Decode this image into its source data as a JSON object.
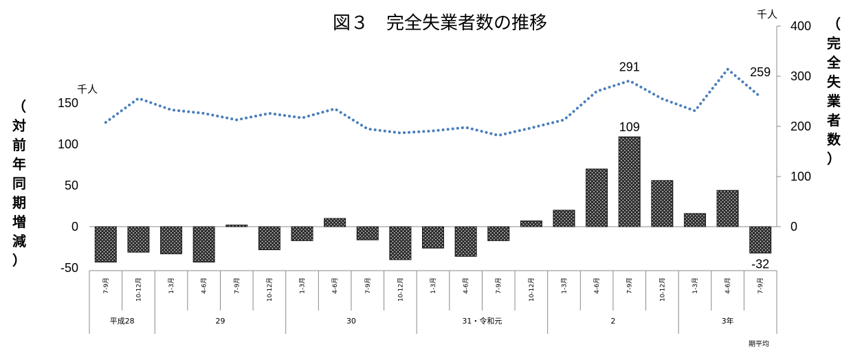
{
  "chart_data": {
    "type": "bar",
    "title": "図３　完全失業者数の推移",
    "left_axis": {
      "unit": "千人",
      "label_chars": [
        "（",
        "対",
        "前",
        "年",
        "同",
        "期",
        "増",
        "減",
        "）"
      ],
      "ylim": [
        -50,
        150
      ],
      "ticks": [
        -50,
        0,
        50,
        100,
        150
      ]
    },
    "right_axis": {
      "unit": "千人",
      "label_chars": [
        "（",
        "完",
        "全",
        "失",
        "業",
        "者",
        "数",
        "）"
      ],
      "ylim": [
        0,
        400
      ],
      "ticks": [
        0,
        100,
        200,
        300,
        400
      ]
    },
    "categories": [
      "7-9月",
      "10-12月",
      "1-3月",
      "4-6月",
      "7-9月",
      "10-12月",
      "1-3月",
      "4-6月",
      "7-9月",
      "10-12月",
      "1-3月",
      "4-6月",
      "7-9月",
      "10-12月",
      "1-3月",
      "4-6月",
      "7-9月",
      "10-12月",
      "1-3月",
      "4-6月",
      "7-9月"
    ],
    "year_groups": [
      {
        "label": "平成28",
        "count": 2
      },
      {
        "label": "29",
        "count": 4
      },
      {
        "label": "30",
        "count": 4
      },
      {
        "label": "31・令和元",
        "count": 4
      },
      {
        "label": "2",
        "count": 4
      },
      {
        "label": "3年",
        "count": 3
      }
    ],
    "series": [
      {
        "type": "bar",
        "axis": "left",
        "values": [
          -43,
          -31,
          -33,
          -43,
          2,
          -28,
          -17,
          10,
          -16,
          -40,
          -26,
          -36,
          -17,
          7,
          20,
          70,
          109,
          56,
          16,
          44,
          -32
        ]
      },
      {
        "type": "line",
        "style": "dotted",
        "axis": "right",
        "values": [
          208,
          256,
          233,
          226,
          213,
          226,
          217,
          235,
          195,
          187,
          191,
          198,
          182,
          197,
          213,
          270,
          291,
          255,
          231,
          314,
          259
        ]
      }
    ],
    "data_labels": [
      {
        "series": 0,
        "index": 16,
        "text": "109"
      },
      {
        "series": 0,
        "index": 20,
        "text": "-32"
      },
      {
        "series": 1,
        "index": 16,
        "text": "291"
      },
      {
        "series": 1,
        "index": 20,
        "text": "259"
      }
    ],
    "footnote": "期平均",
    "colors": {
      "bar_fill": "#2b2b2b",
      "bar_dot": "#e8e8e8",
      "line": "#4a7ebb",
      "axis": "#888888"
    }
  }
}
